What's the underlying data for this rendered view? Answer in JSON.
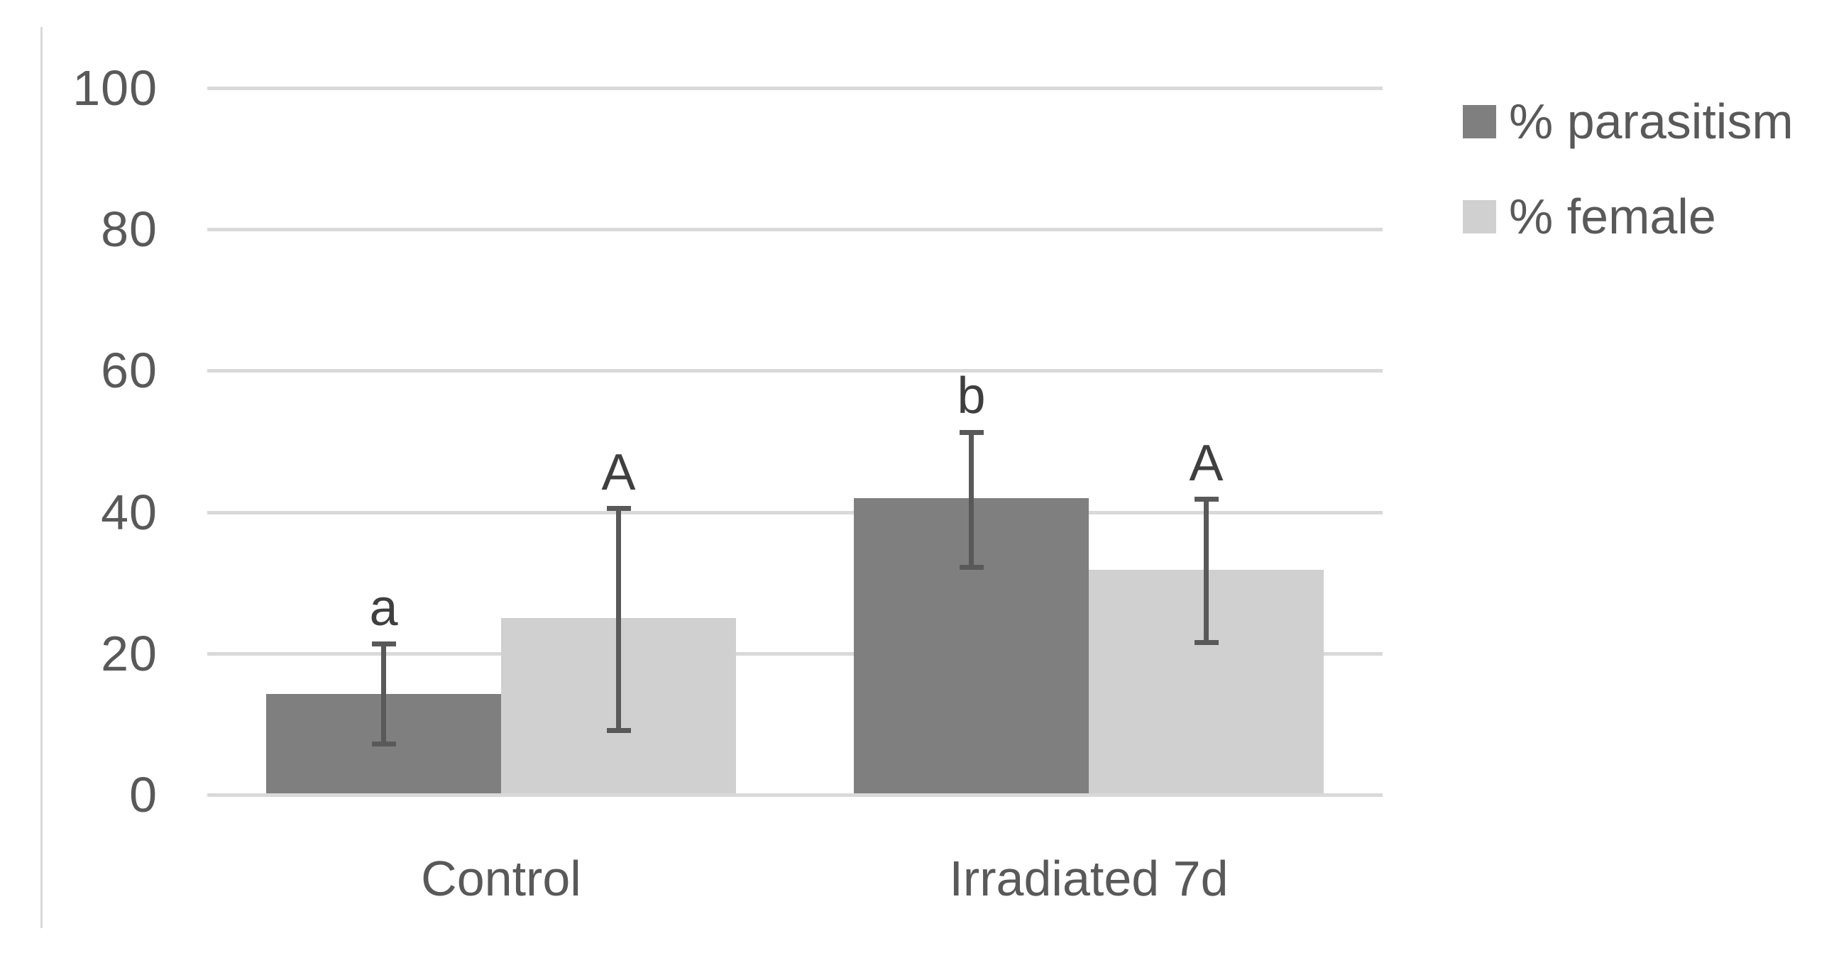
{
  "chart_data": {
    "type": "bar",
    "title": "",
    "xlabel": "",
    "ylabel": "",
    "categories": [
      "Control",
      "Irradiated 7d"
    ],
    "series": [
      {
        "name": "% parasitism",
        "color": "#7f7f7f",
        "values": [
          14.3,
          42.0
        ],
        "error_low": [
          7.2,
          32.2
        ],
        "error_high": [
          21.3,
          51.3
        ],
        "sig_letters": [
          "a",
          "b"
        ]
      },
      {
        "name": "% female",
        "color": "#d0d0d0",
        "values": [
          25.0,
          31.8
        ],
        "error_low": [
          9.1,
          21.5
        ],
        "error_high": [
          40.5,
          41.8
        ],
        "sig_letters": [
          "A",
          "A"
        ]
      }
    ],
    "ylim": [
      0,
      100
    ],
    "yticks": [
      0,
      20,
      40,
      60,
      80,
      100
    ],
    "grid": true,
    "legend_position": "top-right"
  },
  "style": {
    "background": "#ffffff",
    "gridline_color": "#d9d9d9",
    "left_border_color": "#d9d9d9",
    "error_bar_color": "#595959",
    "axis_text_color": "#595959",
    "category_text_color": "#595959",
    "legend_text_color": "#595959",
    "letter_color": "#3f3f3f"
  }
}
